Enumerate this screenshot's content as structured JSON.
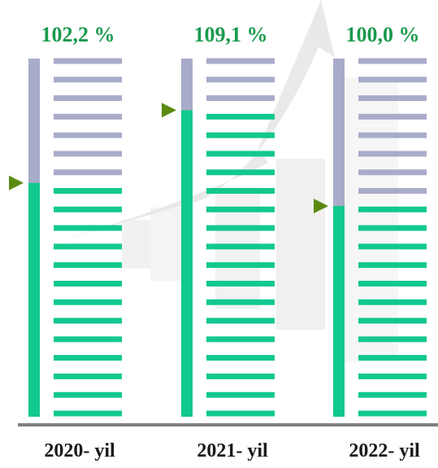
{
  "chart_data": {
    "type": "gauge",
    "categories": [
      "2020- yil",
      "2021- yil",
      "2022- yil"
    ],
    "values": [
      102.2,
      109.1,
      100.0
    ],
    "value_labels": [
      "102,2 %",
      "109,1 %",
      "100,0 %"
    ],
    "ylim": [
      80,
      114
    ],
    "color": "#12c88f",
    "empty_color": "#a9acc9",
    "label_color": "#1b9a4e",
    "marker_color": "#5b8a12"
  }
}
